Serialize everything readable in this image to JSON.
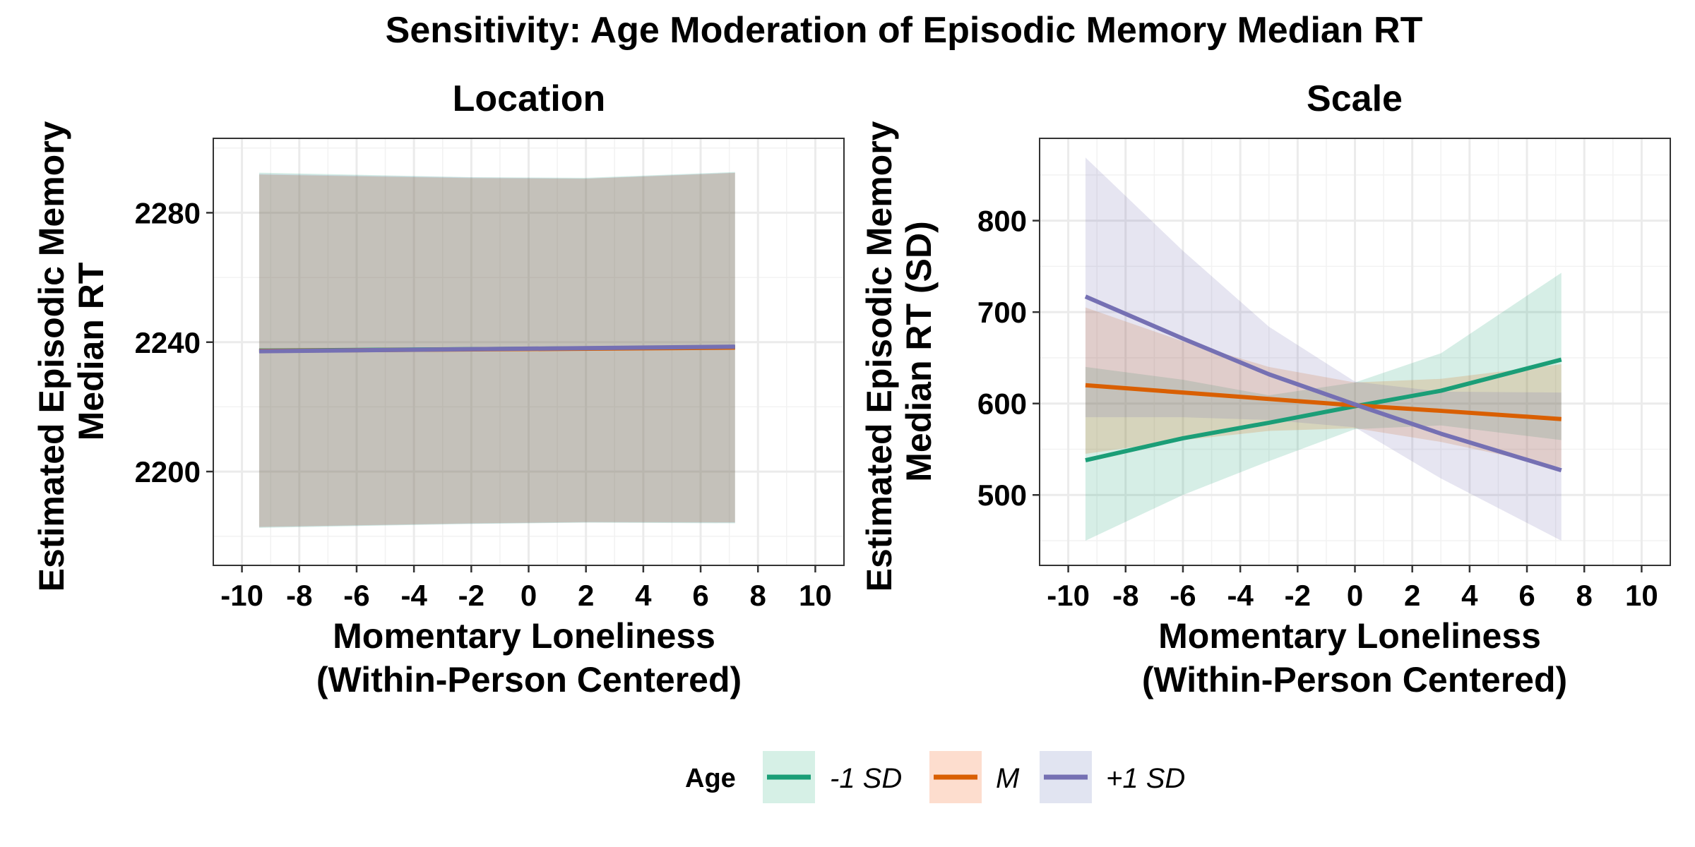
{
  "chart_data": [
    {
      "type": "line",
      "panel": "Location",
      "title": "Sensitivity: Age Moderation of Episodic Memory Median RT",
      "xlabel": [
        "Momentary Loneliness",
        "(Within-Person Centered)"
      ],
      "ylabel": [
        "Estimated Episodic Memory",
        "Median RT"
      ],
      "xlim": [
        -11,
        11
      ],
      "ylim": [
        2171,
        2303
      ],
      "xticks": [
        "-10",
        "-8",
        "-6",
        "-4",
        "-2",
        "0",
        "2",
        "4",
        "6",
        "8",
        "10"
      ],
      "yticks": [
        "2200",
        "2240",
        "2280"
      ],
      "grid": true,
      "series": [
        {
          "name": "-1 SD",
          "color": "#1B9E77",
          "x": [
            -9.4,
            7.2
          ],
          "y": [
            2237.4,
            2238.4
          ],
          "ribbon_x": [
            -9.4,
            -2,
            2,
            7.2
          ],
          "ribbon_low": [
            2182.6,
            2183.8,
            2184.2,
            2184.0
          ],
          "ribbon_high": [
            2292.4,
            2291.0,
            2290.8,
            2292.6
          ]
        },
        {
          "name": "M",
          "color": "#D95F02",
          "x": [
            -9.4,
            7.2
          ],
          "y": [
            2237.3,
            2238.3
          ],
          "ribbon_x": [
            -9.4,
            -2,
            2,
            7.2
          ],
          "ribbon_low": [
            2182.9,
            2184.0,
            2184.4,
            2184.3
          ],
          "ribbon_high": [
            2291.8,
            2290.7,
            2290.5,
            2292.3
          ]
        },
        {
          "name": "+1 SD",
          "color": "#7570B3",
          "x": [
            -9.4,
            7.2
          ],
          "y": [
            2237.2,
            2238.6
          ],
          "ribbon_x": [
            -9.4,
            -2,
            2,
            7.2
          ],
          "ribbon_low": [
            2182.8,
            2183.9,
            2184.3,
            2184.2
          ],
          "ribbon_high": [
            2292.0,
            2290.9,
            2290.6,
            2292.4
          ]
        }
      ]
    },
    {
      "type": "line",
      "panel": "Scale",
      "xlabel": [
        "Momentary Loneliness",
        "(Within-Person Centered)"
      ],
      "ylabel": [
        "Estimated Episodic Memory",
        "Median RT (SD)"
      ],
      "xlim": [
        -11,
        11
      ],
      "ylim": [
        423,
        890
      ],
      "xticks": [
        "-10",
        "-8",
        "-6",
        "-4",
        "-2",
        "0",
        "2",
        "4",
        "6",
        "8",
        "10"
      ],
      "yticks": [
        "500",
        "600",
        "700",
        "800"
      ],
      "grid": true,
      "series": [
        {
          "name": "-1 SD",
          "color": "#1B9E77",
          "x": [
            -9.4,
            -6,
            -3,
            0,
            3,
            7.2
          ],
          "y": [
            538,
            562,
            579,
            597,
            614,
            648
          ],
          "ribbon_x": [
            -9.4,
            -6,
            -3,
            0,
            3,
            7.2
          ],
          "ribbon_low": [
            450,
            500,
            537,
            572,
            576,
            560
          ],
          "ribbon_high": [
            640,
            626,
            609,
            623,
            655,
            743
          ]
        },
        {
          "name": "M",
          "color": "#D95F02",
          "x": [
            -9.4,
            -6,
            -3,
            0,
            3,
            7.2
          ],
          "y": [
            620,
            612,
            605,
            598,
            592,
            583
          ],
          "ribbon_x": [
            -9.4,
            -6,
            -3,
            0,
            3,
            7.2
          ],
          "ribbon_low": [
            545,
            560,
            570,
            573,
            558,
            530
          ],
          "ribbon_high": [
            705,
            668,
            640,
            623,
            627,
            643
          ]
        },
        {
          "name": "+1 SD",
          "color": "#7570B3",
          "x": [
            -9.4,
            -6,
            -3,
            0,
            3,
            7.2
          ],
          "y": [
            717,
            671,
            632,
            599,
            567,
            527
          ],
          "ribbon_x": [
            -9.4,
            -6,
            -3,
            0,
            3,
            7.2
          ],
          "ribbon_low": [
            585,
            585,
            582,
            574,
            518,
            450
          ],
          "ribbon_high": [
            869,
            767,
            684,
            624,
            613,
            612
          ]
        }
      ]
    }
  ],
  "legend": {
    "title": "Age",
    "position": "bottom",
    "items": [
      {
        "label": "-1 SD",
        "color": "#1B9E77",
        "fill": "#D6F0E6"
      },
      {
        "label": "M",
        "color": "#D95F02",
        "fill": "#FDDDCE"
      },
      {
        "label": "+1 SD",
        "color": "#7570B3",
        "fill": "#E1E4F1"
      }
    ]
  }
}
